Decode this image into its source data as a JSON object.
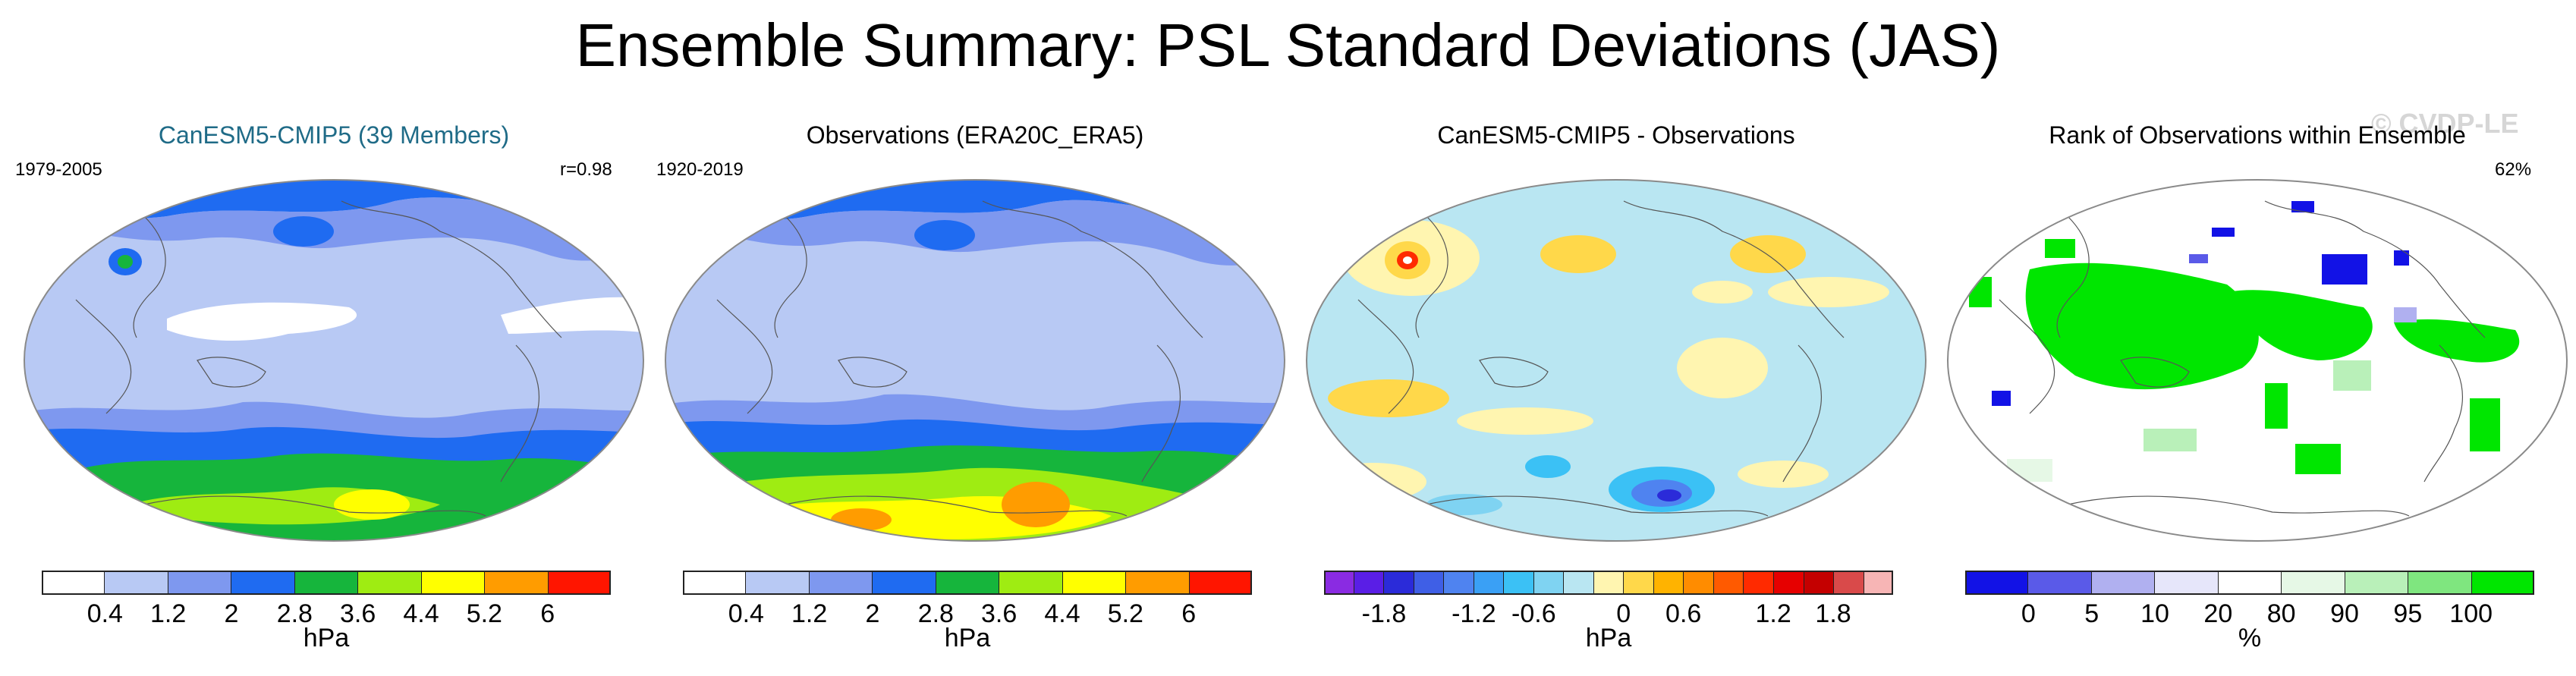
{
  "figure": {
    "title": "Ensemble Summary: PSL Standard Deviations (JAS)",
    "watermark": "© CVDP-LE"
  },
  "colors": {
    "title_blue": "#1f6b87",
    "coast": "#555555",
    "ocean_bg": "#b8c9f4"
  },
  "chart_data": [
    {
      "type": "heatmap",
      "title": "CanESM5-CMIP5 (39 Members)",
      "left_label": "1979-2005",
      "right_label": "r=0.98",
      "variable": "PSL standard deviation",
      "units": "hPa",
      "colorbar": {
        "levels": [
          "0.4",
          "1.2",
          "2",
          "2.8",
          "3.6",
          "4.4",
          "5.2",
          "6"
        ],
        "colors": [
          "#ffffff",
          "#b8c9f4",
          "#7e98ef",
          "#1f6bf1",
          "#16b53c",
          "#9fec12",
          "#ffff00",
          "#ff9c00",
          "#ff1500"
        ]
      }
    },
    {
      "type": "heatmap",
      "title": "Observations (ERA20C_ERA5)",
      "left_label": "1920-2019",
      "right_label": "",
      "variable": "PSL standard deviation",
      "units": "hPa",
      "colorbar": {
        "levels": [
          "0.4",
          "1.2",
          "2",
          "2.8",
          "3.6",
          "4.4",
          "5.2",
          "6"
        ],
        "colors": [
          "#ffffff",
          "#b8c9f4",
          "#7e98ef",
          "#1f6bf1",
          "#16b53c",
          "#9fec12",
          "#ffff00",
          "#ff9c00",
          "#ff1500"
        ]
      }
    },
    {
      "type": "heatmap",
      "title": "CanESM5-CMIP5 - Observations",
      "left_label": "",
      "right_label": "",
      "variable": "PSL standard deviation difference",
      "units": "hPa",
      "colorbar": {
        "levels": [
          "-1.8",
          "-1.2",
          "-0.6",
          "0",
          "0.6",
          "1.2",
          "1.8"
        ],
        "colors": [
          "#8a2be2",
          "#5a1ee6",
          "#2b2bd9",
          "#3f5fe6",
          "#4f83f0",
          "#3aa0f5",
          "#3bc1f5",
          "#7fd3f2",
          "#b9e6f2",
          "#fff5b0",
          "#ffd84a",
          "#ffb300",
          "#ff8c00",
          "#ff5a00",
          "#ff2a00",
          "#e60000",
          "#c40000",
          "#d94a4a",
          "#f7b5b5"
        ]
      }
    },
    {
      "type": "heatmap",
      "title": "Rank of Observations within Ensemble",
      "left_label": "",
      "right_label": "62%",
      "variable": "rank of observations",
      "units": "%",
      "colorbar": {
        "levels": [
          "0",
          "5",
          "10",
          "20",
          "80",
          "90",
          "95",
          "100"
        ],
        "colors": [
          "#1212e6",
          "#5a5ae8",
          "#b0b0f0",
          "#e6e6fa",
          "#ffffff",
          "#e6f8e6",
          "#b9f0b9",
          "#7fe67f",
          "#00e600"
        ]
      }
    }
  ]
}
